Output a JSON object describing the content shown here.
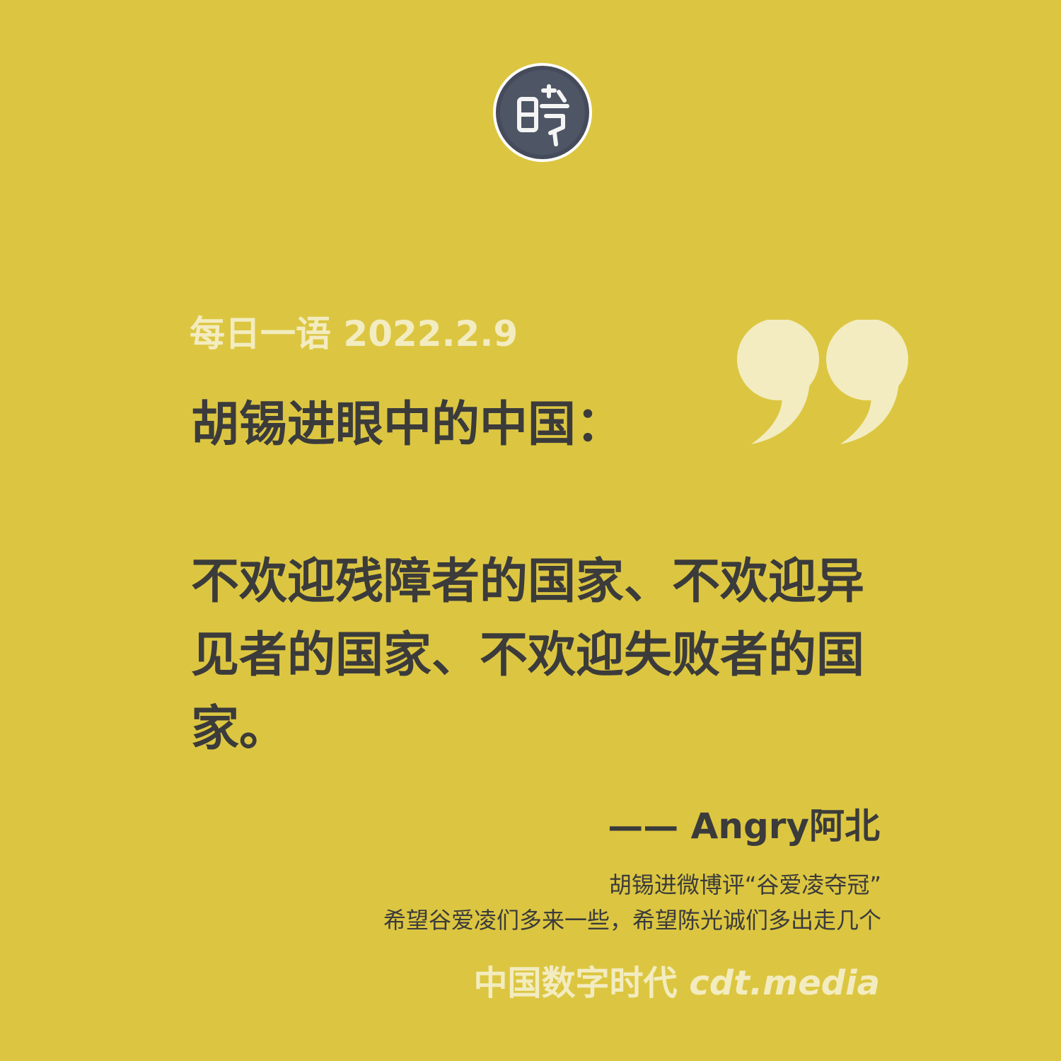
{
  "header": {
    "logo_icon": "cdt-seal-logo-icon"
  },
  "date_line": "每日一语 2022.2.9",
  "headline": "胡锡进眼中的中国：",
  "quote": {
    "lines": [
      "不欢迎残障者的国家、不欢迎异",
      "见者的国家、不欢迎失败者的国",
      "家。"
    ],
    "mark_icon": "quotation-mark-icon"
  },
  "author": "—— Angry阿北",
  "source": {
    "line1": "胡锡进微博评“谷爱凌夺冠”",
    "line2": "希望谷爱凌们多来一些，希望陈光诚们多出走几个"
  },
  "footer": {
    "brand": "中国数字时代",
    "site": "cdt.media"
  },
  "colors": {
    "background": "#dcc641",
    "text_dark": "#3b3b3b",
    "text_light": "#f3ecc0"
  }
}
